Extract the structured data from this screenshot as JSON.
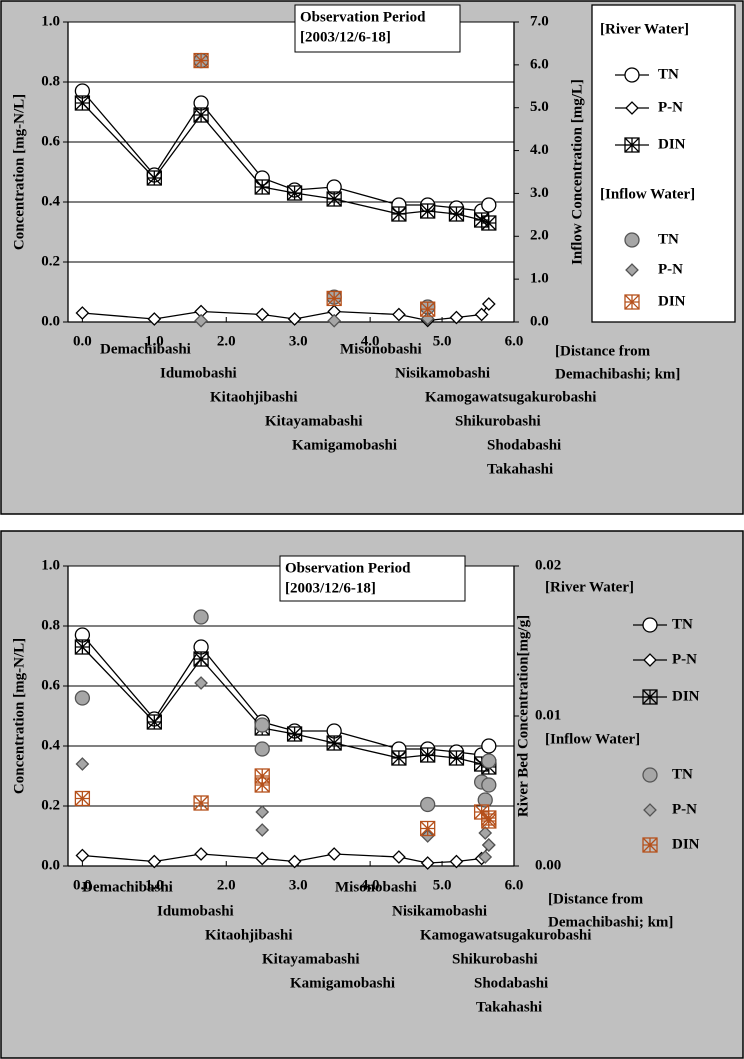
{
  "chart_data": [
    {
      "type": "line",
      "title_lines": [
        "Observation Period",
        "[2003/12/6-18]"
      ],
      "y_label": "Concentration [mg-N/L]",
      "y2_label": "Inflow Concentration [mg/L]",
      "x_label_lines": [
        "[Distance from",
        "Demachibashi; km]"
      ],
      "xlim": [
        -0.2,
        6.0
      ],
      "xticks": [
        {
          "value": 0,
          "label": "0.0"
        },
        {
          "value": 1,
          "label": "1.0"
        },
        {
          "value": 2,
          "label": "2.0"
        },
        {
          "value": 3,
          "label": "3.0"
        },
        {
          "value": 4,
          "label": "4.0"
        },
        {
          "value": 5,
          "label": "5.0"
        },
        {
          "value": 6,
          "label": "6.0"
        }
      ],
      "ylim": [
        0,
        1.0
      ],
      "yticks": [
        {
          "value": 0,
          "label": "0.0"
        },
        0.2,
        0.4,
        0.6,
        0.8,
        {
          "value": 1,
          "label": "1.0"
        }
      ],
      "y2lim": [
        0,
        7.0
      ],
      "y2ticks": [
        {
          "value": 0,
          "label": "0.0"
        },
        {
          "value": 1,
          "label": "1.0"
        },
        {
          "value": 2,
          "label": "2.0"
        },
        {
          "value": 3,
          "label": "3.0"
        },
        {
          "value": 4,
          "label": "4.0"
        },
        {
          "value": 5,
          "label": "5.0"
        },
        {
          "value": 6,
          "label": "6.0"
        },
        {
          "value": 7,
          "label": "7.0"
        }
      ],
      "grid": true,
      "stations": [
        "Demachibashi",
        "Idumobashi",
        "Kitaohjibashi",
        "Kitayamabashi",
        "Kamigamobashi",
        "Misonobashi",
        "Nisikamobashi",
        "Kamogawatsugakurobashi",
        "Shikurobashi",
        "Shodabashi",
        "Takahashi"
      ],
      "groups": [
        {
          "title": "[River Water]",
          "series": [
            {
              "name": "TN",
              "marker": "circle-open",
              "color": "#000000",
              "line": true,
              "x": [
                0,
                1.0,
                1.65,
                2.5,
                2.95,
                3.5,
                4.4,
                4.8,
                5.2,
                5.55,
                5.65
              ],
              "values": [
                0.77,
                0.49,
                0.73,
                0.48,
                0.44,
                0.45,
                0.39,
                0.39,
                0.38,
                0.37,
                0.39
              ]
            },
            {
              "name": "P-N",
              "marker": "diamond-open",
              "color": "#000000",
              "line": true,
              "x": [
                0,
                1.0,
                1.65,
                2.5,
                2.95,
                3.5,
                4.4,
                4.8,
                5.2,
                5.55,
                5.65
              ],
              "values": [
                0.03,
                0.01,
                0.035,
                0.025,
                0.01,
                0.035,
                0.025,
                0.005,
                0.015,
                0.025,
                0.06
              ]
            },
            {
              "name": "DIN",
              "marker": "box-star",
              "color": "#000000",
              "line": true,
              "x": [
                0,
                1.0,
                1.65,
                2.5,
                2.95,
                3.5,
                4.4,
                4.8,
                5.2,
                5.55,
                5.65
              ],
              "values": [
                0.73,
                0.48,
                0.69,
                0.45,
                0.43,
                0.41,
                0.36,
                0.37,
                0.36,
                0.34,
                0.33
              ]
            }
          ]
        },
        {
          "title": "[Inflow Water]",
          "series": [
            {
              "name": "TN",
              "marker": "circle-filled",
              "color": "#a6a6a6",
              "line": false,
              "axis": "y2",
              "x": [
                1.65,
                3.5,
                4.8
              ],
              "values": [
                6.1,
                0.58,
                0.35
              ]
            },
            {
              "name": "P-N",
              "marker": "diamond-filled",
              "color": "#a6a6a6",
              "line": false,
              "axis": "y2",
              "x": [
                1.65,
                3.5,
                4.8
              ],
              "values": [
                0.03,
                0.03,
                0.08
              ]
            },
            {
              "name": "DIN",
              "marker": "box-star",
              "color": "#b5501b",
              "line": false,
              "axis": "y2",
              "x": [
                1.65,
                3.5,
                4.8
              ],
              "values": [
                6.1,
                0.55,
                0.3
              ]
            }
          ]
        }
      ]
    },
    {
      "type": "line",
      "title_lines": [
        "Observation Period",
        "[2003/12/6-18]"
      ],
      "y_label": "Concentration [mg-N/L]",
      "y2_label": "River Bed Concentration[mg/g]",
      "x_label_lines": [
        "[Distance from",
        "Demachibashi; km]"
      ],
      "xlim": [
        -0.2,
        6.0
      ],
      "xticks": [
        {
          "value": 0,
          "label": "0.0"
        },
        {
          "value": 1,
          "label": "1.0"
        },
        {
          "value": 2,
          "label": "2.0"
        },
        {
          "value": 3,
          "label": "3.0"
        },
        {
          "value": 4,
          "label": "4.0"
        },
        {
          "value": 5,
          "label": "5.0"
        },
        {
          "value": 6,
          "label": "6.0"
        }
      ],
      "ylim": [
        0,
        1.0
      ],
      "yticks": [
        {
          "value": 0,
          "label": "0.0"
        },
        0.2,
        0.4,
        0.6,
        0.8,
        {
          "value": 1,
          "label": "1.0"
        }
      ],
      "y2lim": [
        0,
        0.02
      ],
      "y2ticks": [
        {
          "value": 0,
          "label": "0.00"
        },
        0.01,
        0.02
      ],
      "grid": true,
      "stations": [
        "Demachibashi",
        "Idumobashi",
        "Kitaohjibashi",
        "Kitayamabashi",
        "Kamigamobashi",
        "Misonobashi",
        "Nisikamobashi",
        "Kamogawatsugakurobashi",
        "Shikurobashi",
        "Shodabashi",
        "Takahashi"
      ],
      "groups": [
        {
          "title": "[River Water]",
          "series": [
            {
              "name": "TN",
              "marker": "circle-open",
              "color": "#000000",
              "line": true,
              "x": [
                0,
                1.0,
                1.65,
                2.5,
                2.95,
                3.5,
                4.4,
                4.8,
                5.2,
                5.55,
                5.65
              ],
              "values": [
                0.77,
                0.49,
                0.73,
                0.48,
                0.45,
                0.45,
                0.39,
                0.39,
                0.38,
                0.37,
                0.4
              ]
            },
            {
              "name": "P-N",
              "marker": "diamond-open",
              "color": "#000000",
              "line": true,
              "x": [
                0,
                1.0,
                1.65,
                2.5,
                2.95,
                3.5,
                4.4,
                4.8,
                5.2,
                5.55,
                5.65
              ],
              "values": [
                0.035,
                0.015,
                0.04,
                0.025,
                0.015,
                0.04,
                0.03,
                0.01,
                0.015,
                0.025,
                0.07
              ]
            },
            {
              "name": "DIN",
              "marker": "box-star",
              "color": "#000000",
              "line": true,
              "x": [
                0,
                1.0,
                1.65,
                2.5,
                2.95,
                3.5,
                4.4,
                4.8,
                5.2,
                5.55,
                5.65
              ],
              "values": [
                0.73,
                0.48,
                0.69,
                0.46,
                0.44,
                0.41,
                0.36,
                0.37,
                0.36,
                0.34,
                0.33
              ]
            }
          ]
        },
        {
          "title": "[Inflow Water]",
          "series": [
            {
              "name": "TN",
              "marker": "circle-filled",
              "color": "#a6a6a6",
              "line": false,
              "axis": "y2",
              "x": [
                0,
                1.65,
                2.5,
                2.5,
                4.8,
                5.55,
                5.6,
                5.65,
                5.65
              ],
              "values": [
                0.0112,
                0.0166,
                0.0078,
                0.0094,
                0.0041,
                0.0056,
                0.0044,
                0.0054,
                0.007
              ]
            },
            {
              "name": "P-N",
              "marker": "diamond-filled",
              "color": "#a6a6a6",
              "line": false,
              "axis": "y2",
              "x": [
                0,
                1.65,
                2.5,
                2.5,
                4.8,
                5.6,
                5.65,
                5.6
              ],
              "values": [
                0.0068,
                0.0122,
                0.0036,
                0.0024,
                0.002,
                0.0022,
                0.0014,
                0.0006
              ]
            },
            {
              "name": "DIN",
              "marker": "box-star",
              "color": "#b5501b",
              "line": false,
              "axis": "y2",
              "x": [
                0,
                1.65,
                2.5,
                2.5,
                4.8,
                5.55,
                5.65,
                5.65
              ],
              "values": [
                0.0045,
                0.0042,
                0.006,
                0.0054,
                0.0025,
                0.0036,
                0.0032,
                0.003
              ]
            }
          ]
        }
      ]
    }
  ]
}
